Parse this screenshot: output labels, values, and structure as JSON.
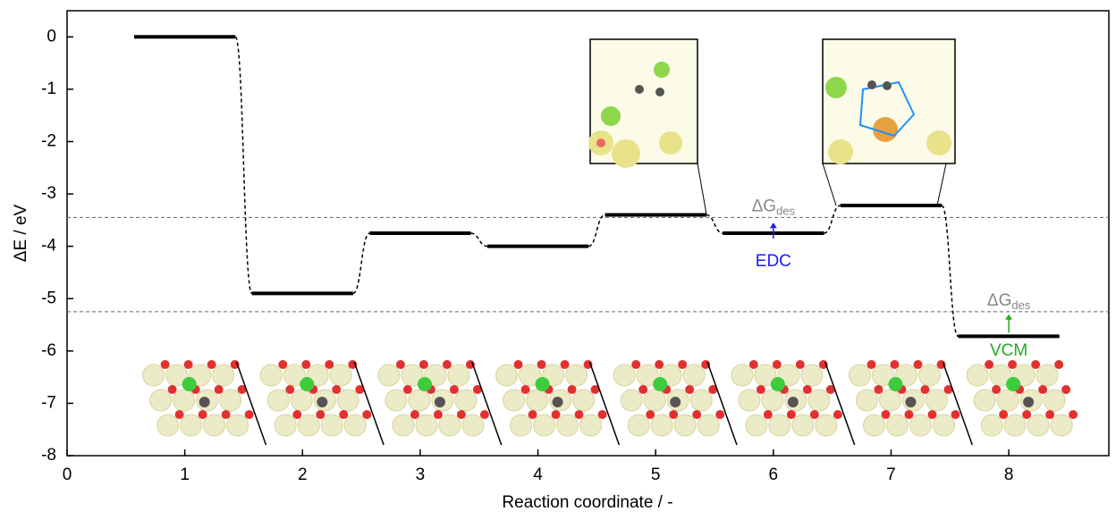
{
  "chart_data": {
    "type": "energy_levels",
    "x_label": "Reaction coordinate / -",
    "y_label": "ΔE / eV",
    "x": [
      1,
      2,
      3,
      4,
      5,
      6,
      7,
      8
    ],
    "values": [
      0,
      -4.9,
      -3.75,
      -4.0,
      -3.4,
      -3.75,
      -3.22,
      -5.72
    ],
    "color": "#000000",
    "xlim": [
      0,
      8.85
    ],
    "xticks": [
      0,
      1,
      2,
      3,
      4,
      5,
      6,
      7,
      8
    ],
    "ylim": [
      -8,
      0.5
    ],
    "yticks": [
      0,
      -1,
      -2,
      -3,
      -4,
      -5,
      -6,
      -7,
      -8
    ],
    "reference_lines": [
      -3.45,
      -5.25
    ],
    "annotations": [
      {
        "text": "ΔG",
        "sub": "des",
        "color": "#888888"
      },
      {
        "text": "EDC",
        "color": "#1a1aff"
      },
      {
        "text": "ΔG",
        "sub": "des",
        "color": "#888888"
      },
      {
        "text": "VCM",
        "color": "#22aa22"
      }
    ]
  }
}
